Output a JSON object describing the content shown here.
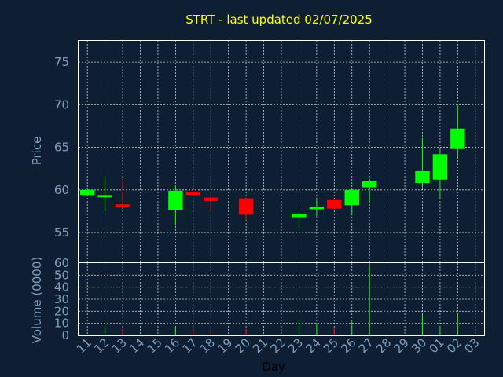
{
  "chart_data": {
    "type": "candlestick",
    "title": "STRT - last updated 02/07/2025",
    "xlabel": "Day",
    "ylabel_price": "Price",
    "ylabel_volume": "Volume (0000)",
    "x_ticks": [
      "11",
      "12",
      "13",
      "14",
      "15",
      "16",
      "17",
      "18",
      "19",
      "20",
      "21",
      "22",
      "23",
      "24",
      "25",
      "26",
      "27",
      "28",
      "29",
      "30",
      "01",
      "02",
      "03"
    ],
    "price_ticks": [
      55,
      60,
      65,
      70,
      75
    ],
    "price_range": [
      51.5,
      77.5
    ],
    "volume_ticks": [
      0,
      10,
      20,
      30,
      40,
      50,
      60
    ],
    "volume_range": [
      0,
      60
    ],
    "colors": {
      "up": "#00ff00",
      "down": "#ff0000",
      "title": "#ffff00",
      "axis": "#7f9fbf",
      "background": "#0f1f33"
    },
    "grid": true,
    "candles": [
      {
        "day": "11",
        "open": 59.4,
        "high": 60.0,
        "low": 59.4,
        "close": 60.0,
        "volume": 0
      },
      {
        "day": "12",
        "open": 59.3,
        "high": 61.5,
        "low": 57.6,
        "close": 59.4,
        "volume": 6
      },
      {
        "day": "13",
        "open": 58.3,
        "high": 61.2,
        "low": 58.0,
        "close": 58.0,
        "volume": 5
      },
      {
        "day": "16",
        "open": 57.6,
        "high": 60.5,
        "low": 55.8,
        "close": 59.9,
        "volume": 7
      },
      {
        "day": "17",
        "open": 59.7,
        "high": 60.0,
        "low": 59.2,
        "close": 59.4,
        "volume": 4
      },
      {
        "day": "18",
        "open": 59.1,
        "high": 59.5,
        "low": 57.6,
        "close": 58.7,
        "volume": 3
      },
      {
        "day": "20",
        "open": 59.0,
        "high": 59.0,
        "low": 56.5,
        "close": 57.1,
        "volume": 5
      },
      {
        "day": "23",
        "open": 56.8,
        "high": 57.4,
        "low": 55.3,
        "close": 57.2,
        "volume": 13
      },
      {
        "day": "24",
        "open": 57.8,
        "high": 59.1,
        "low": 56.9,
        "close": 58.0,
        "volume": 10
      },
      {
        "day": "25",
        "open": 58.8,
        "high": 58.9,
        "low": 57.7,
        "close": 57.8,
        "volume": 6
      },
      {
        "day": "26",
        "open": 58.2,
        "high": 60.1,
        "low": 57.0,
        "close": 60.0,
        "volume": 12
      },
      {
        "day": "27",
        "open": 60.3,
        "high": 61.2,
        "low": 58.5,
        "close": 61.0,
        "volume": 58
      },
      {
        "day": "30",
        "open": 60.8,
        "high": 66.1,
        "low": 60.3,
        "close": 62.2,
        "volume": 17
      },
      {
        "day": "01",
        "open": 61.2,
        "high": 64.8,
        "low": 58.9,
        "close": 64.2,
        "volume": 8
      },
      {
        "day": "02",
        "open": 64.8,
        "high": 70.0,
        "low": 63.8,
        "close": 67.2,
        "volume": 17
      }
    ]
  }
}
